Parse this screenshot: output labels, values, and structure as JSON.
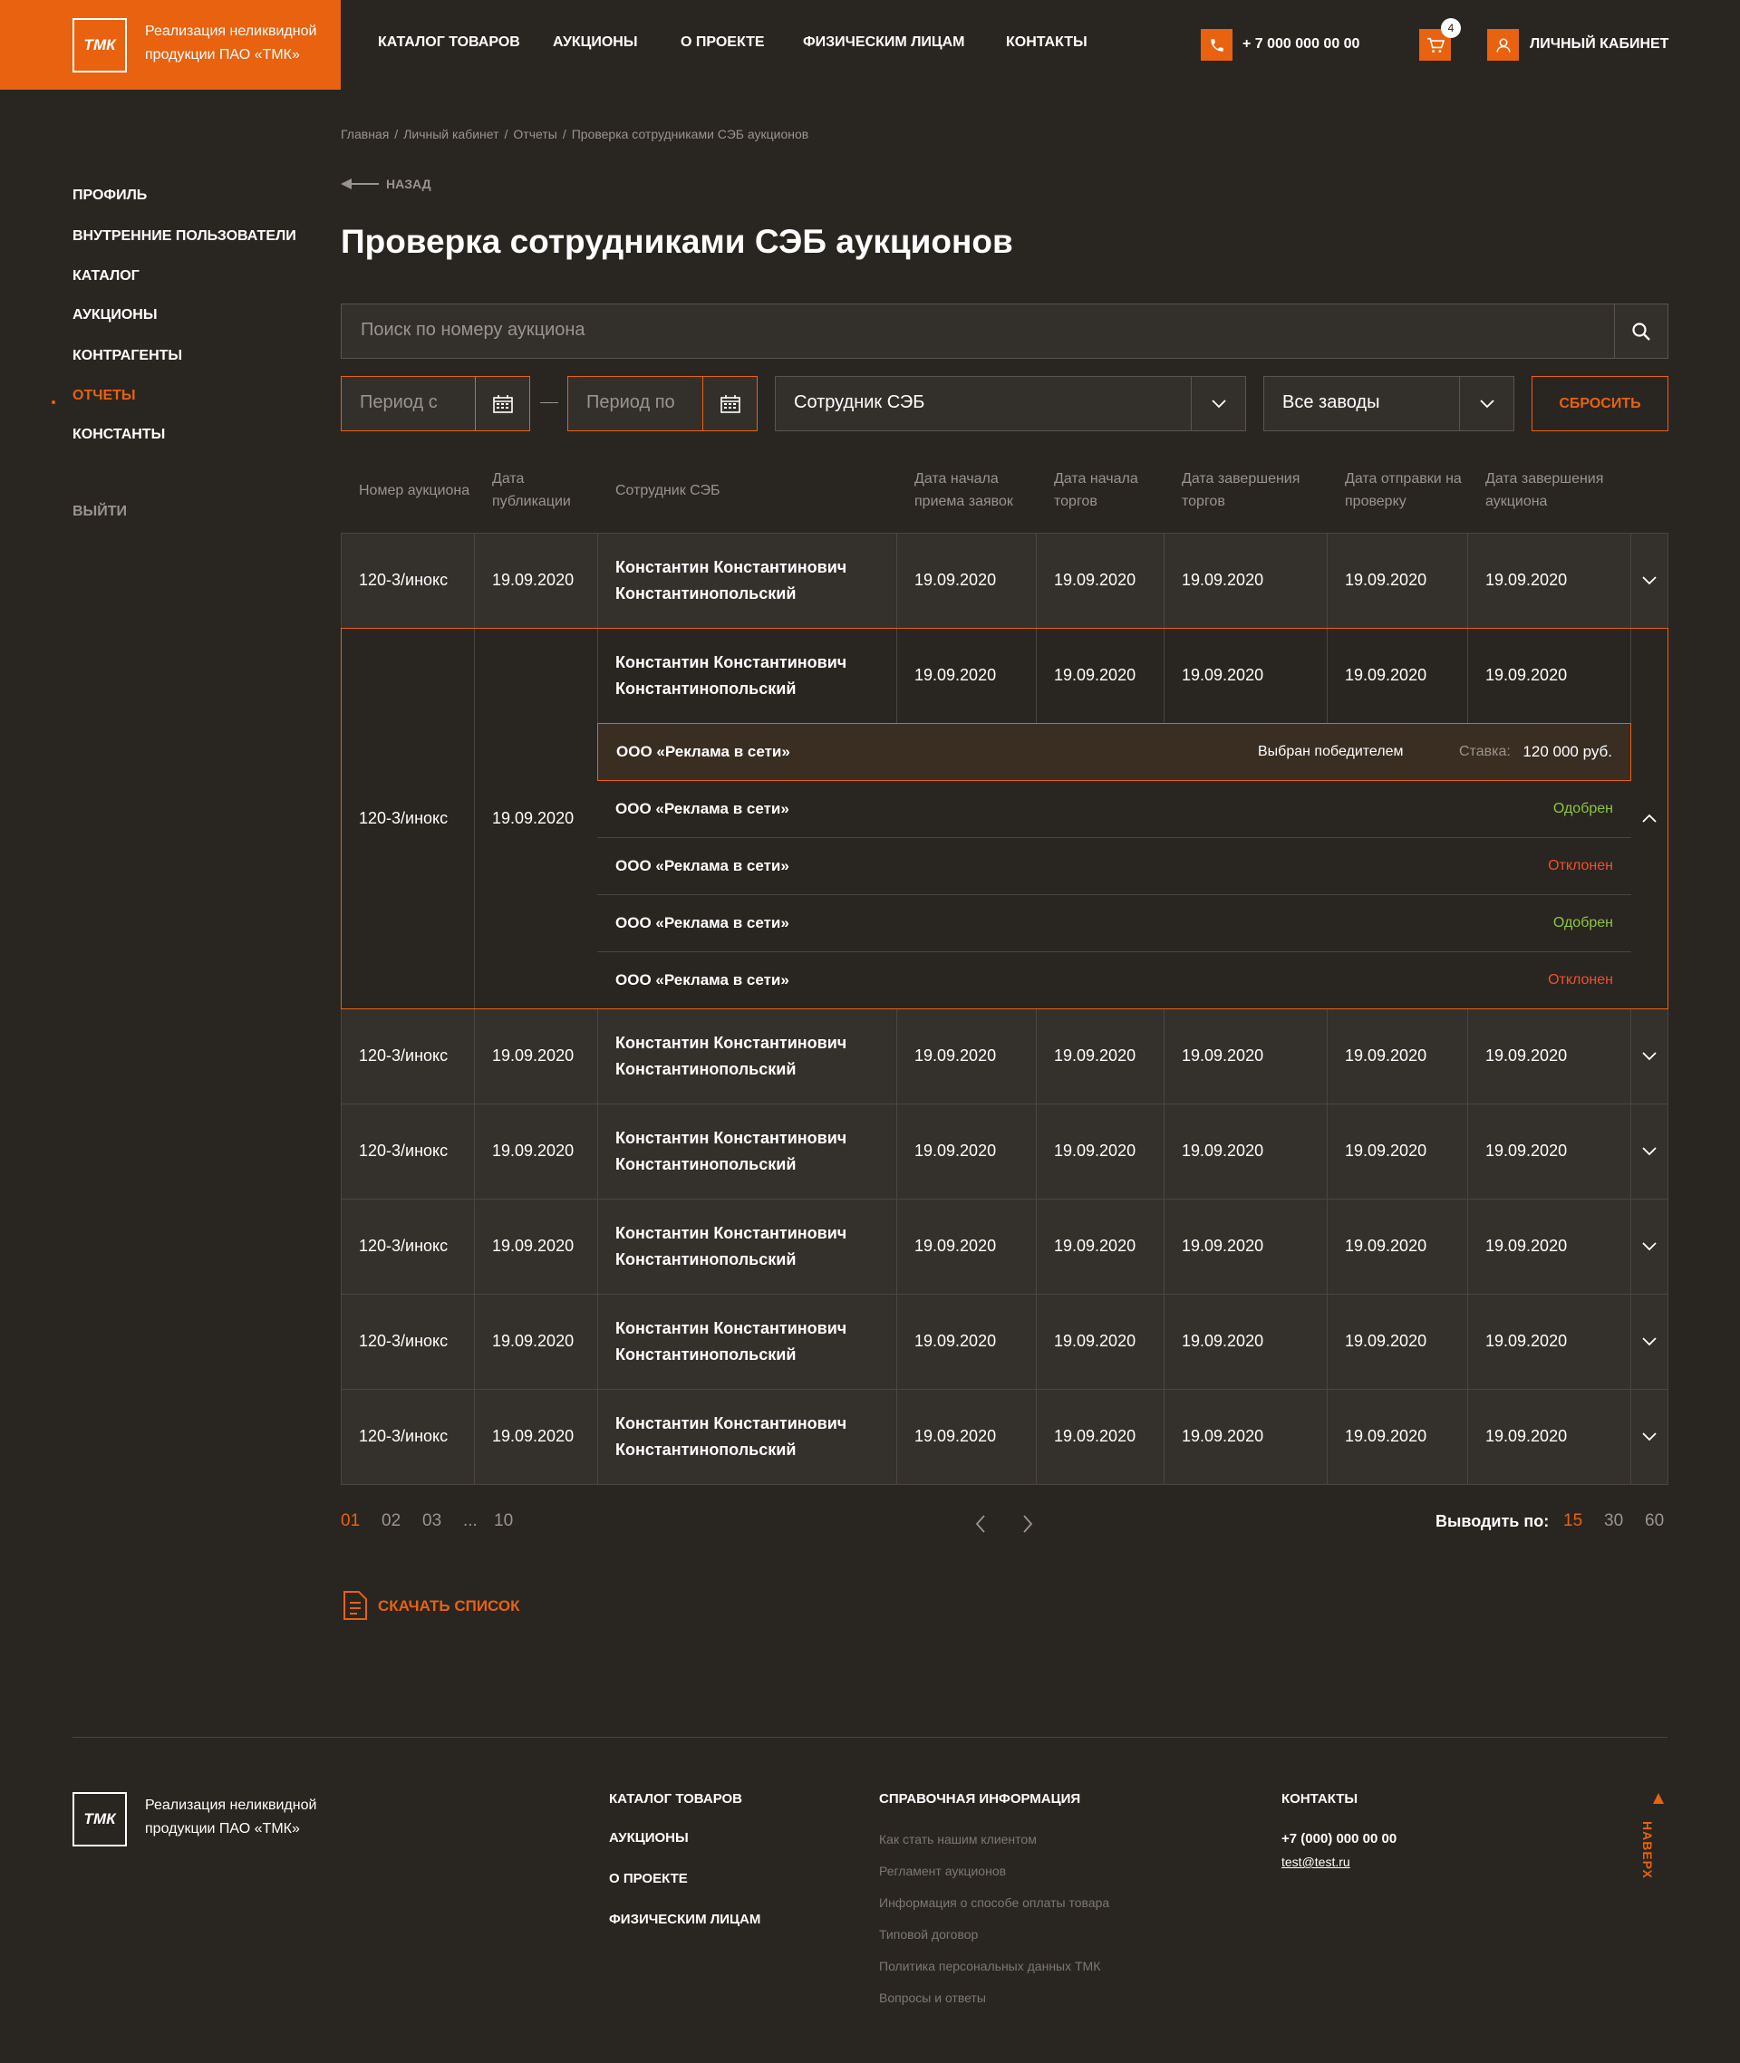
{
  "header": {
    "logo_mark": "ТМК",
    "logo_text": "Реализация неликвидной продукции ПАО «ТМК»",
    "nav": [
      "КАТАЛОГ ТОВАРОВ",
      "АУКЦИОНЫ",
      "О ПРОЕКТЕ",
      "ФИЗИЧЕСКИМ ЛИЦАМ",
      "КОНТАКТЫ"
    ],
    "phone": "+ 7 000 000 00 00",
    "cart_count": "4",
    "cabinet": "ЛИЧНЫЙ КАБИНЕТ"
  },
  "sidebar": {
    "items": [
      "ПРОФИЛЬ",
      "ВНУТРЕННИЕ ПОЛЬЗОВАТЕЛИ",
      "КАТАЛОГ",
      "АУКЦИОНЫ",
      "КОНТРАГЕНТЫ",
      "ОТЧЕТЫ",
      "КОНСТАНТЫ"
    ],
    "active": 5,
    "logout": "ВЫЙТИ"
  },
  "breadcrumbs": [
    "Главная",
    "Личный кабинет",
    "Отчеты",
    "Проверка сотрудниками СЭБ аукционов"
  ],
  "back": "НАЗАД",
  "title": "Проверка сотрудниками СЭБ аукционов",
  "search_placeholder": "Поиск по номеру аукциона",
  "filters": {
    "period_from": "Период с",
    "period_to": "Период по",
    "employee": "Сотрудник СЭБ",
    "plants": "Все заводы",
    "reset": "СБРОСИТЬ"
  },
  "table": {
    "columns": [
      "Номер аукциона",
      "Дата публикации",
      "Сотрудник СЭБ",
      "Дата начала приема заявок",
      "Дата начала торгов",
      "Дата завершения торгов",
      "Дата отправки на проверку",
      "Дата завершения аукциона"
    ],
    "rows": [
      {
        "number": "120-3/инокс",
        "published": "19.09.2020",
        "employee": "Константин Константинович Константинопольский",
        "dates": [
          "19.09.2020",
          "19.09.2020",
          "19.09.2020",
          "19.09.2020",
          "19.09.2020"
        ]
      },
      {
        "number": "120-3/инокс",
        "published": "19.09.2020",
        "employee": "Константин Константинович Константинопольский",
        "dates": [
          "19.09.2020",
          "19.09.2020",
          "19.09.2020",
          "19.09.2020",
          "19.09.2020"
        ],
        "bids": [
          {
            "company": "ООО «Реклама в сети»",
            "status": "Выбран победителем",
            "kind": "winner",
            "rate_label": "Ставка:",
            "rate": "120 000 руб."
          },
          {
            "company": "ООО «Реклама в сети»",
            "status": "Одобрен",
            "kind": "approved"
          },
          {
            "company": "ООО «Реклама в сети»",
            "status": "Отклонен",
            "kind": "rejected"
          },
          {
            "company": "ООО «Реклама в сети»",
            "status": "Одобрен",
            "kind": "approved"
          },
          {
            "company": "ООО «Реклама в сети»",
            "status": "Отклонен",
            "kind": "rejected"
          }
        ]
      },
      {
        "number": "120-3/инокс",
        "published": "19.09.2020",
        "employee": "Константин Константинович Константинопольский",
        "dates": [
          "19.09.2020",
          "19.09.2020",
          "19.09.2020",
          "19.09.2020",
          "19.09.2020"
        ]
      },
      {
        "number": "120-3/инокс",
        "published": "19.09.2020",
        "employee": "Константин Константинович Константинопольский",
        "dates": [
          "19.09.2020",
          "19.09.2020",
          "19.09.2020",
          "19.09.2020",
          "19.09.2020"
        ]
      },
      {
        "number": "120-3/инокс",
        "published": "19.09.2020",
        "employee": "Константин Константинович Константинопольский",
        "dates": [
          "19.09.2020",
          "19.09.2020",
          "19.09.2020",
          "19.09.2020",
          "19.09.2020"
        ]
      },
      {
        "number": "120-3/инокс",
        "published": "19.09.2020",
        "employee": "Константин Константинович Константинопольский",
        "dates": [
          "19.09.2020",
          "19.09.2020",
          "19.09.2020",
          "19.09.2020",
          "19.09.2020"
        ]
      },
      {
        "number": "120-3/инокс",
        "published": "19.09.2020",
        "employee": "Константин Константинович Константинопольский",
        "dates": [
          "19.09.2020",
          "19.09.2020",
          "19.09.2020",
          "19.09.2020",
          "19.09.2020"
        ]
      }
    ]
  },
  "pagination": {
    "pages": [
      "01",
      "02",
      "03",
      "...",
      "10"
    ],
    "current": 0,
    "per_page_label": "Выводить по:",
    "per_page": [
      "15",
      "30",
      "60"
    ],
    "per_page_current": 0
  },
  "download": "СКАЧАТЬ СПИСОК",
  "footer": {
    "logo_mark": "ТМК",
    "logo_text": "Реализация неликвидной продукции ПАО «ТМК»",
    "nav": [
      "КАТАЛОГ ТОВАРОВ",
      "АУКЦИОНЫ",
      "О ПРОЕКТЕ",
      "ФИЗИЧЕСКИМ ЛИЦАМ"
    ],
    "info_title": "СПРАВОЧНАЯ ИНФОРМАЦИЯ",
    "info_links": [
      "Как стать нашим клиентом",
      "Регламент аукционов",
      "Информация о способе оплаты товара",
      "Типовой договор",
      "Политика персональных данных ТМК",
      "Вопросы и ответы"
    ],
    "contacts_title": "КОНТАКТЫ",
    "phone": "+7 (000) 000 00 00",
    "email": "test@test.ru",
    "to_top": "НАВЕРХ"
  }
}
